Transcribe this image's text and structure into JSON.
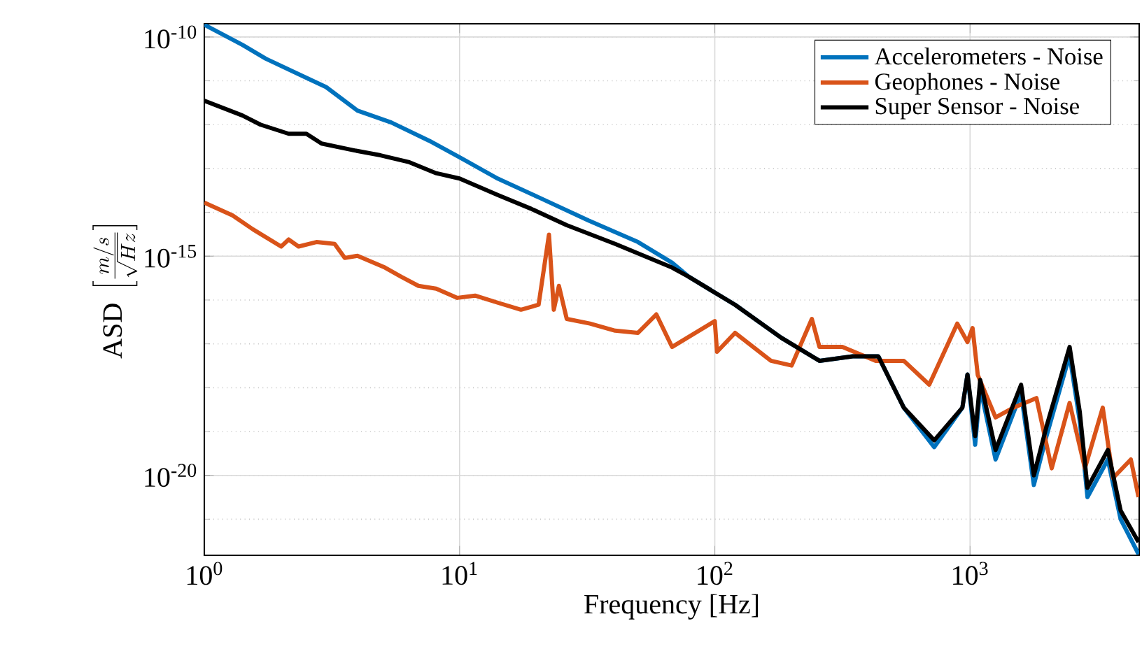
{
  "chart_data": {
    "type": "line",
    "xlabel": "Frequency [Hz]",
    "ylabel": "\\mathrm{ASD}\\;\\left[\\frac{m/s}{\\sqrt{Hz}}\\right]",
    "log": "xy",
    "grid": true,
    "legend": "top right",
    "xlim": [
      1,
      4600
    ],
    "ylim": [
      1.5e-22,
      2e-10
    ],
    "xticks": [
      {
        "value": 1,
        "label": "10$^{0}$"
      },
      {
        "value": 10,
        "label": "10$^{1}$"
      },
      {
        "value": 100,
        "label": "10$^{2}$"
      },
      {
        "value": 1000,
        "label": "10$^{3}$"
      }
    ],
    "yticks": [
      {
        "value": 1e-20,
        "label": "10$^{-20}$"
      },
      {
        "value": 1e-15,
        "label": "10$^{-15}$"
      },
      {
        "value": 1e-10,
        "label": "10$^{-10}$"
      }
    ],
    "series": [
      {
        "name": "Accelerometers - Noise",
        "color": "#0072bd",
        "x": [
          1,
          1.41,
          1.74,
          2.51,
          3.0,
          3.98,
          5.4,
          7.6,
          10,
          14.1,
          20.4,
          32,
          50,
          68,
          79,
          120,
          182,
          257,
          347,
          437,
          550,
          724,
          933,
          977,
          1047,
          1096,
          1259,
          1585,
          1778,
          1995,
          2455,
          2692,
          2884,
          3467,
          3890,
          4571
        ],
        "values": [
          1.9e-10,
          6.6e-11,
          3.2e-11,
          1.17e-11,
          7.2e-12,
          2.1e-12,
          1.12e-12,
          4.3e-13,
          1.8e-13,
          5.9e-14,
          2.2e-14,
          6.5e-15,
          2.1e-15,
          7.1e-16,
          3.4e-16,
          7.8e-17,
          1.38e-17,
          4.1e-18,
          5.2e-18,
          5.2e-18,
          3.5e-19,
          4.4e-20,
          3.5e-19,
          2e-18,
          5e-20,
          1e-18,
          2.3e-20,
          7.5e-19,
          6e-21,
          8e-20,
          5.5e-18,
          1.7e-19,
          3.2e-21,
          2.3e-20,
          1e-21,
          1.6e-22
        ]
      },
      {
        "name": "Geophones - Noise",
        "color": "#d95319",
        "x": [
          1,
          1.29,
          1.55,
          2.0,
          2.14,
          2.34,
          2.75,
          3.24,
          3.55,
          3.98,
          5.1,
          5.9,
          6.9,
          8.1,
          9.8,
          11.5,
          14.1,
          17.4,
          20.4,
          22.4,
          23.4,
          24.5,
          26.3,
          32.4,
          40.7,
          50,
          59,
          68,
          100,
          102,
          120,
          166,
          200,
          240,
          257,
          316,
          427,
          550,
          692,
          891,
          977,
          1023,
          1072,
          1259,
          1479,
          1820,
          2089,
          2455,
          2818,
          3311,
          3631,
          4266,
          4571
        ],
        "values": [
          1.66e-14,
          8.5e-15,
          4.1e-15,
          1.66e-15,
          2.4e-15,
          1.66e-15,
          2.1e-15,
          1.9e-15,
          9.1e-16,
          1.02e-15,
          5.5e-16,
          3.4e-16,
          2.1e-16,
          1.82e-16,
          1.12e-16,
          1.26e-16,
          8.7e-17,
          6e-17,
          7.8e-17,
          3.1e-15,
          6e-17,
          2.1e-16,
          3.7e-17,
          2.9e-17,
          2e-17,
          1.78e-17,
          4.7e-17,
          8.5e-18,
          3.3e-17,
          6.6e-18,
          1.78e-17,
          4.1e-18,
          3.2e-18,
          3.7e-17,
          8.5e-18,
          8.5e-18,
          4.1e-18,
          4.1e-18,
          1.17e-18,
          2.9e-17,
          1.1e-17,
          2.3e-17,
          1.95e-18,
          2.1e-19,
          3.5e-19,
          5.8e-19,
          1.45e-20,
          4.5e-19,
          1.45e-20,
          3.5e-19,
          8.7e-21,
          2.3e-20,
          3.2e-21
        ]
      },
      {
        "name": "Super Sensor - Noise",
        "color": "#000000",
        "x": [
          1,
          1.41,
          1.66,
          2.14,
          2.51,
          2.88,
          3.85,
          4.9,
          6.31,
          8.1,
          10,
          14.1,
          19.1,
          26.3,
          40.7,
          68,
          79,
          120,
          182,
          257,
          347,
          437,
          550,
          724,
          933,
          977,
          1047,
          1096,
          1259,
          1585,
          1778,
          1995,
          2455,
          2692,
          2884,
          3467,
          3890,
          4571
        ],
        "values": [
          3.5e-12,
          1.62e-12,
          1e-12,
          6.2e-13,
          6.2e-13,
          3.7e-13,
          2.6e-13,
          2e-13,
          1.41e-13,
          7.8e-14,
          5.9e-14,
          2.5e-14,
          1.2e-14,
          5.1e-15,
          1.9e-15,
          5.5e-16,
          3.4e-16,
          7.8e-17,
          1.38e-17,
          4.1e-18,
          5.2e-18,
          5.2e-18,
          3.5e-19,
          6.3e-20,
          3.5e-19,
          2e-18,
          7.9e-20,
          1.5e-18,
          3.8e-20,
          1.17e-18,
          1e-20,
          1.32e-19,
          8.5e-18,
          2.75e-19,
          5.2e-21,
          3.8e-20,
          1.58e-21,
          3e-22
        ]
      }
    ]
  }
}
